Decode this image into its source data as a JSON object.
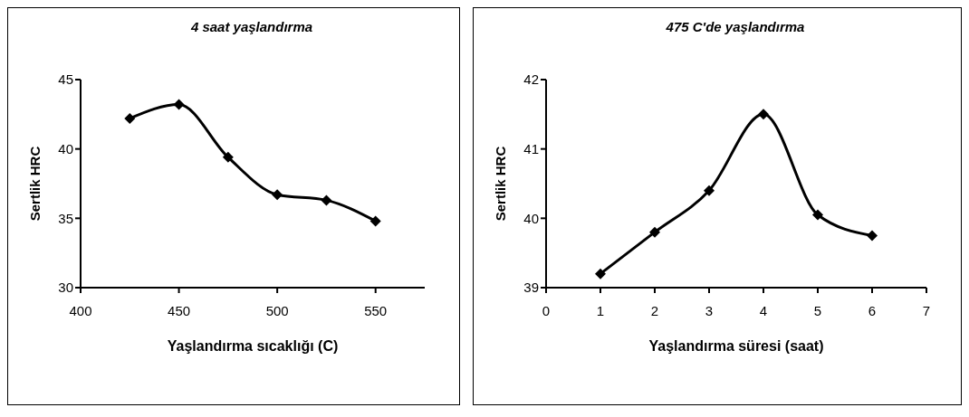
{
  "chart_data": [
    {
      "type": "line",
      "title": "4 saat yaşlandırma",
      "xlabel": "Yaşlandırma sıcaklığı (C)",
      "ylabel": "Sertlik HRC",
      "x": [
        425,
        450,
        475,
        500,
        525,
        550
      ],
      "series": [
        {
          "color": "#000000",
          "values": [
            42.2,
            43.2,
            39.4,
            36.7,
            36.3,
            34.8
          ]
        }
      ],
      "xlim": [
        400,
        575
      ],
      "xticks": [
        400,
        450,
        500,
        550
      ],
      "ylim": [
        30,
        45
      ],
      "yticks": [
        30,
        35,
        40,
        45
      ],
      "marker": "diamond",
      "grid": false,
      "legend": false
    },
    {
      "type": "line",
      "title": "475 C'de yaşlandırma",
      "xlabel": "Yaşlandırma süresi (saat)",
      "ylabel": "Sertlik HRC",
      "x": [
        1,
        2,
        3,
        4,
        5,
        6
      ],
      "series": [
        {
          "color": "#000000",
          "values": [
            39.2,
            39.8,
            40.4,
            41.5,
            40.05,
            39.75
          ]
        }
      ],
      "xlim": [
        0,
        7
      ],
      "xticks": [
        0,
        1,
        2,
        3,
        4,
        5,
        6,
        7
      ],
      "ylim": [
        39,
        42
      ],
      "yticks": [
        39,
        40,
        41,
        42
      ],
      "marker": "diamond",
      "grid": false,
      "legend": false
    }
  ]
}
